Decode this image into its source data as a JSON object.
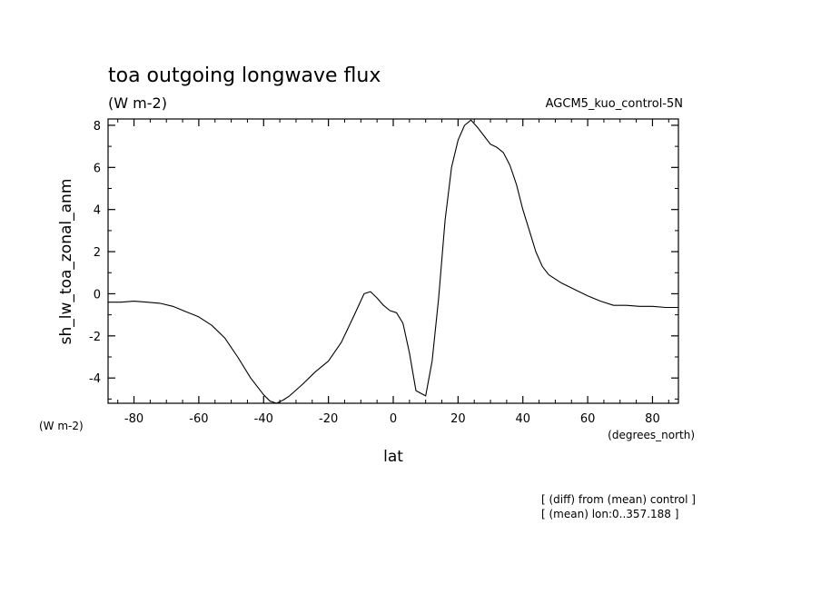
{
  "chart_data": {
    "type": "line",
    "title": "toa outgoing longwave flux",
    "subtitle": "(W m-2)",
    "run_label": "AGCM5_kuo_control-5N",
    "xlabel": "lat",
    "ylabel": "sh_lw_toa_zonal_anm",
    "x_units": "(degrees_north)",
    "y_units": "(W m-2)",
    "xlim": [
      -88,
      88
    ],
    "ylim": [
      -5.2,
      8.3
    ],
    "x_ticks": [
      -80,
      -60,
      -40,
      -20,
      0,
      20,
      40,
      60,
      80
    ],
    "y_ticks": [
      -4,
      -2,
      0,
      2,
      4,
      6,
      8
    ],
    "x_tick_labels": [
      "-80",
      "-60",
      "-40",
      "-20",
      "0",
      "20",
      "40",
      "60",
      "80"
    ],
    "y_tick_labels": [
      "-4",
      "-2",
      "0",
      "2",
      "4",
      "6",
      "8"
    ],
    "grid": false,
    "series": [
      {
        "x": [
          -88,
          -84,
          -80,
          -76,
          -72,
          -68,
          -64,
          -60,
          -56,
          -52,
          -48,
          -44,
          -40,
          -38,
          -36,
          -34,
          -32,
          -28,
          -24,
          -20,
          -16,
          -12,
          -9,
          -7,
          -5,
          -3,
          -1,
          1,
          3,
          5,
          7,
          10,
          12,
          14,
          16,
          18,
          20,
          22,
          24,
          26,
          28,
          30,
          32,
          34,
          36,
          38,
          40,
          42,
          44,
          46,
          48,
          50,
          52,
          54,
          56,
          58,
          60,
          64,
          68,
          72,
          76,
          80,
          84,
          88
        ],
        "y": [
          -0.4,
          -0.4,
          -0.35,
          -0.4,
          -0.45,
          -0.6,
          -0.85,
          -1.1,
          -1.5,
          -2.1,
          -3.0,
          -4.0,
          -4.8,
          -5.1,
          -5.2,
          -5.05,
          -4.85,
          -4.3,
          -3.7,
          -3.2,
          -2.3,
          -1.0,
          0.0,
          0.1,
          -0.2,
          -0.55,
          -0.8,
          -0.9,
          -1.4,
          -2.8,
          -4.6,
          -4.85,
          -3.2,
          -0.2,
          3.5,
          6.0,
          7.3,
          8.0,
          8.25,
          7.9,
          7.5,
          7.1,
          6.95,
          6.7,
          6.1,
          5.2,
          4.0,
          3.0,
          2.0,
          1.3,
          0.9,
          0.7,
          0.5,
          0.35,
          0.2,
          0.05,
          -0.1,
          -0.35,
          -0.55,
          -0.55,
          -0.6,
          -0.6,
          -0.65,
          -0.65
        ]
      }
    ]
  },
  "notes": [
    "[ (diff) from (mean) control ]",
    "[ (mean) lon:0..357.188 ]"
  ]
}
